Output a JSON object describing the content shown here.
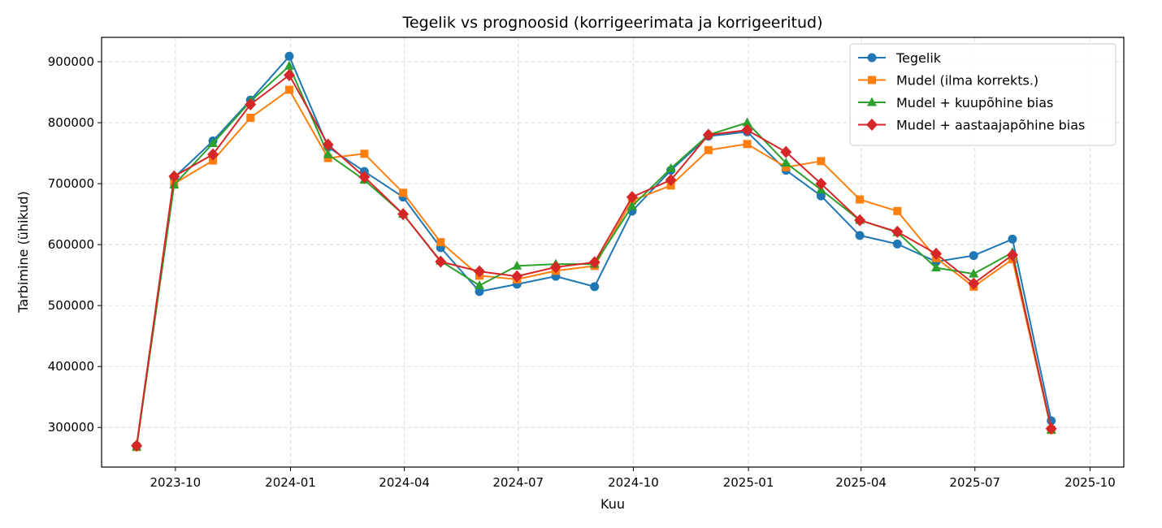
{
  "chart_data": {
    "type": "line",
    "title": "Tegelik vs prognoosid (korrigeerimata ja korrigeeritud)",
    "xlabel": "Kuu",
    "ylabel": "Tarbimine (ühikud)",
    "x_tick_labels": [
      "2023-10",
      "2024-01",
      "2024-04",
      "2024-07",
      "2024-10",
      "2025-01",
      "2025-04",
      "2025-07",
      "2025-10"
    ],
    "y_tick_labels": [
      "300000",
      "400000",
      "500000",
      "600000",
      "700000",
      "800000",
      "900000"
    ],
    "y_ticks": [
      300000,
      400000,
      500000,
      600000,
      700000,
      800000,
      900000
    ],
    "ylim": [
      235000,
      940000
    ],
    "xlim": [
      "2023-08-03",
      "2025-10-28"
    ],
    "grid": true,
    "legend_position": "top-right",
    "x": [
      "2023-08-31",
      "2023-09-30",
      "2023-10-31",
      "2023-11-30",
      "2023-12-31",
      "2024-01-31",
      "2024-02-29",
      "2024-03-31",
      "2024-04-30",
      "2024-05-31",
      "2024-06-30",
      "2024-07-31",
      "2024-08-31",
      "2024-09-30",
      "2024-10-31",
      "2024-11-30",
      "2024-12-31",
      "2025-01-31",
      "2025-02-28",
      "2025-03-31",
      "2025-04-30",
      "2025-05-31",
      "2025-06-30",
      "2025-07-31",
      "2025-08-31"
    ],
    "series": [
      {
        "name": "Tegelik",
        "color": "#1f77b4",
        "marker": "circle",
        "values": [
          270000,
          710000,
          770000,
          837000,
          909000,
          760000,
          720000,
          678000,
          595000,
          523000,
          535000,
          548000,
          531000,
          655000,
          722000,
          778000,
          785000,
          722000,
          680000,
          615000,
          601000,
          572000,
          582000,
          609000,
          311000
        ]
      },
      {
        "name": "Mudel (ilma korrekts.)",
        "color": "#ff7f0e",
        "marker": "square",
        "values": [
          268000,
          700000,
          738000,
          808000,
          854000,
          742000,
          749000,
          685000,
          604000,
          549000,
          543000,
          557000,
          565000,
          672000,
          697000,
          755000,
          765000,
          727000,
          737000,
          674000,
          655000,
          578000,
          531000,
          576000,
          296000
        ]
      },
      {
        "name": "Mudel + kuupõhine bias",
        "color": "#2ca02c",
        "marker": "triangle",
        "values": [
          268000,
          698000,
          766000,
          835000,
          893000,
          748000,
          706000,
          650000,
          573000,
          533000,
          565000,
          568000,
          568000,
          663000,
          725000,
          780000,
          800000,
          734000,
          690000,
          640000,
          620000,
          562000,
          552000,
          587000,
          296000
        ]
      },
      {
        "name": "Mudel + aastaajapõhine bias",
        "color": "#d62728",
        "marker": "diamond",
        "values": [
          270000,
          712000,
          748000,
          830000,
          878000,
          764000,
          711000,
          650000,
          572000,
          556000,
          548000,
          563000,
          571000,
          678000,
          706000,
          780000,
          788000,
          752000,
          700000,
          640000,
          621000,
          585000,
          536000,
          583000,
          298000
        ]
      }
    ]
  }
}
